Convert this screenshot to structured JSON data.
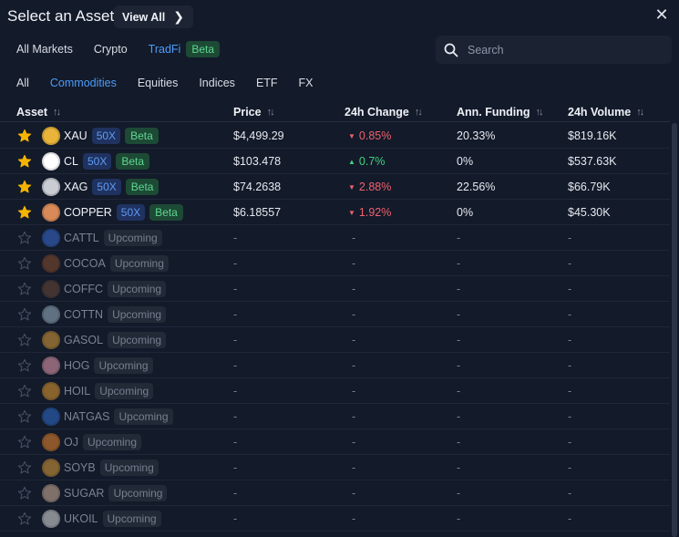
{
  "header": {
    "title": "Select an Asset",
    "view_all": "View All"
  },
  "market_tabs": [
    "All Markets",
    "Crypto",
    "TradFi"
  ],
  "market_badge": "Beta",
  "search": {
    "placeholder": "Search"
  },
  "category_tabs": [
    "All",
    "Commodities",
    "Equities",
    "Indices",
    "ETF",
    "FX"
  ],
  "columns": [
    "Asset",
    "Price",
    "24h Change",
    "Ann. Funding",
    "24h Volume"
  ],
  "colors": {
    "accent": "#4d9cf8",
    "green": "#3fd27f",
    "red": "#f0616d",
    "star": "#f5b400"
  },
  "rows": [
    {
      "symbol": "XAU",
      "starred": true,
      "leverage": "50X",
      "badge": "Beta",
      "price": "$4,499.29",
      "change": "0.85%",
      "direction": "down",
      "funding": "20.33%",
      "volume": "$819.16K",
      "icon_color": "#e8b53a",
      "icon": "gold-bar-icon"
    },
    {
      "symbol": "CL",
      "starred": true,
      "leverage": "50X",
      "badge": "Beta",
      "price": "$103.478",
      "change": "0.7%",
      "direction": "up",
      "funding": "0%",
      "volume": "$537.63K",
      "icon_color": "#ffffff",
      "icon": "oil-drop-icon"
    },
    {
      "symbol": "XAG",
      "starred": true,
      "leverage": "50X",
      "badge": "Beta",
      "price": "$74.2638",
      "change": "2.88%",
      "direction": "down",
      "funding": "22.56%",
      "volume": "$66.79K",
      "icon_color": "#c9ccd2",
      "icon": "silver-icon"
    },
    {
      "symbol": "COPPER",
      "starred": true,
      "leverage": "50X",
      "badge": "Beta",
      "price": "$6.18557",
      "change": "1.92%",
      "direction": "down",
      "funding": "0%",
      "volume": "$45.30K",
      "icon_color": "#d98a58",
      "icon": "copper-icon"
    },
    {
      "symbol": "CATTL",
      "starred": false,
      "badge": "Upcoming",
      "price": "-",
      "change": "-",
      "funding": "-",
      "volume": "-",
      "icon_color": "#3a6fd8",
      "icon": "cattle-icon"
    },
    {
      "symbol": "COCOA",
      "starred": false,
      "badge": "Upcoming",
      "price": "-",
      "change": "-",
      "funding": "-",
      "volume": "-",
      "icon_color": "#8a4f2e",
      "icon": "cocoa-icon"
    },
    {
      "symbol": "COFFC",
      "starred": false,
      "badge": "Upcoming",
      "price": "-",
      "change": "-",
      "funding": "-",
      "volume": "-",
      "icon_color": "#6b4a3a",
      "icon": "coffee-bean-icon"
    },
    {
      "symbol": "COTTN",
      "starred": false,
      "badge": "Upcoming",
      "price": "-",
      "change": "-",
      "funding": "-",
      "volume": "-",
      "icon_color": "#9fb8c8",
      "icon": "cotton-icon"
    },
    {
      "symbol": "GASOL",
      "starred": false,
      "badge": "Upcoming",
      "price": "-",
      "change": "-",
      "funding": "-",
      "volume": "-",
      "icon_color": "#e0a13a",
      "icon": "gasoline-icon"
    },
    {
      "symbol": "HOG",
      "starred": false,
      "badge": "Upcoming",
      "price": "-",
      "change": "-",
      "funding": "-",
      "volume": "-",
      "icon_color": "#f0a5b4",
      "icon": "hog-icon"
    },
    {
      "symbol": "HOIL",
      "starred": false,
      "badge": "Upcoming",
      "price": "-",
      "change": "-",
      "funding": "-",
      "volume": "-",
      "icon_color": "#e8a030",
      "icon": "heating-oil-icon"
    },
    {
      "symbol": "NATGAS",
      "starred": false,
      "badge": "Upcoming",
      "price": "-",
      "change": "-",
      "funding": "-",
      "volume": "-",
      "icon_color": "#2f6fd0",
      "icon": "flame-icon"
    },
    {
      "symbol": "OJ",
      "starred": false,
      "badge": "Upcoming",
      "price": "-",
      "change": "-",
      "funding": "-",
      "volume": "-",
      "icon_color": "#f08a2a",
      "icon": "orange-icon"
    },
    {
      "symbol": "SOYB",
      "starred": false,
      "badge": "Upcoming",
      "price": "-",
      "change": "-",
      "funding": "-",
      "volume": "-",
      "icon_color": "#e0a23a",
      "icon": "soybean-icon"
    },
    {
      "symbol": "SUGAR",
      "starred": false,
      "badge": "Upcoming",
      "price": "-",
      "change": "-",
      "funding": "-",
      "volume": "-",
      "icon_color": "#d8b8a0",
      "icon": "sugar-icon"
    },
    {
      "symbol": "UKOIL",
      "starred": false,
      "badge": "Upcoming",
      "price": "-",
      "change": "-",
      "funding": "-",
      "volume": "-",
      "icon_color": "#e6e6e6",
      "icon": "oil-drop-icon"
    }
  ]
}
